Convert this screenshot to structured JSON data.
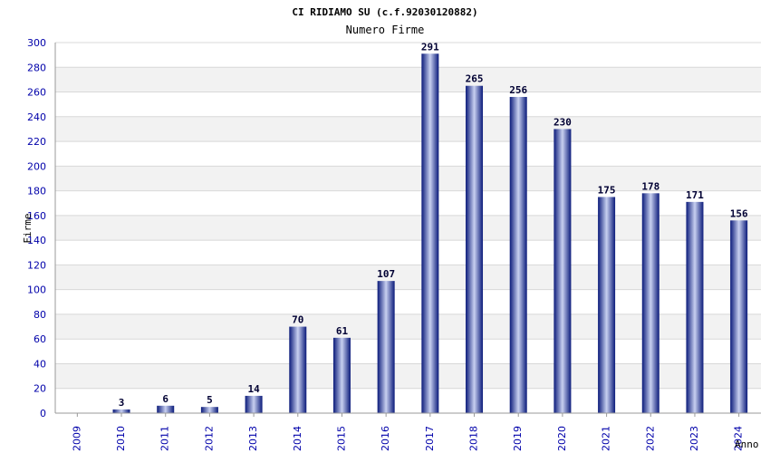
{
  "chart_data": {
    "type": "bar",
    "title": "CI RIDIAMO SU (c.f.92030120882)",
    "subtitle": "Numero Firme",
    "ylabel": "Firme",
    "xlabel": "Anno",
    "ylim": [
      0,
      300
    ],
    "yticks": [
      0,
      20,
      40,
      60,
      80,
      100,
      120,
      140,
      160,
      180,
      200,
      220,
      240,
      260,
      280,
      300
    ],
    "grid": true,
    "categories": [
      "2009",
      "2010",
      "2011",
      "2012",
      "2013",
      "2014",
      "2015",
      "2016",
      "2017",
      "2018",
      "2019",
      "2020",
      "2021",
      "2022",
      "2023",
      "2024"
    ],
    "values": [
      0,
      3,
      6,
      5,
      14,
      70,
      61,
      107,
      291,
      265,
      256,
      230,
      175,
      178,
      171,
      156
    ],
    "data_labels": [
      "",
      "3",
      "6",
      "5",
      "14",
      "70",
      "61",
      "107",
      "291",
      "265",
      "256",
      "230",
      "175",
      "178",
      "171",
      "156"
    ],
    "colors": {
      "bar_dark": "#0a1a7a",
      "bar_light": "#c8d0f0",
      "band": "#f2f2f2",
      "tick_text": "#0000aa"
    }
  }
}
